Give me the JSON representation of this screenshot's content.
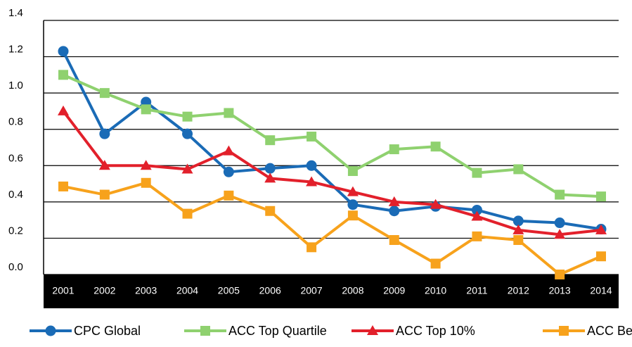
{
  "chart_data": {
    "type": "line",
    "categories": [
      "2001",
      "2002",
      "2003",
      "2004",
      "2005",
      "2006",
      "2007",
      "2008",
      "2009",
      "2010",
      "2011",
      "2012",
      "2013",
      "2014"
    ],
    "series": [
      {
        "name": "CPC Global",
        "color": "#1a6bb6",
        "marker": "circle",
        "values": [
          1.23,
          0.775,
          0.95,
          0.775,
          0.565,
          0.585,
          0.6,
          0.385,
          0.35,
          0.375,
          0.355,
          0.295,
          0.285,
          0.25
        ]
      },
      {
        "name": "ACC Top Quartile",
        "color": "#8fd16f",
        "marker": "square",
        "values": [
          1.1,
          1.0,
          0.91,
          0.87,
          0.89,
          0.74,
          0.76,
          0.57,
          0.69,
          0.705,
          0.56,
          0.58,
          0.44,
          0.43
        ]
      },
      {
        "name": "ACC Top 10%",
        "color": "#e2202b",
        "marker": "triangle",
        "values": [
          0.9,
          0.6,
          0.6,
          0.58,
          0.68,
          0.53,
          0.51,
          0.455,
          0.4,
          0.385,
          0.32,
          0.245,
          0.22,
          0.245
        ]
      },
      {
        "name": "ACC Best",
        "color": "#f7a21c",
        "marker": "square",
        "values": [
          0.485,
          0.44,
          0.505,
          0.335,
          0.435,
          0.35,
          0.15,
          0.325,
          0.19,
          0.06,
          0.21,
          0.19,
          0.0,
          0.1
        ]
      }
    ],
    "ylim": [
      0,
      1.4
    ],
    "yticks": [
      {
        "value": 0,
        "label": "0.0"
      },
      0.2,
      0.4,
      0.6,
      0.8,
      {
        "value": 1,
        "label": "1.0"
      },
      1.2,
      1.4
    ],
    "grid": true,
    "legend": "bottom"
  }
}
